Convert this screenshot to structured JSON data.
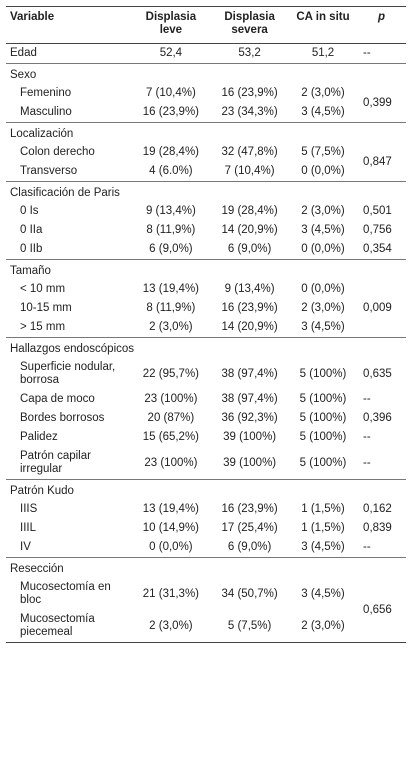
{
  "header": {
    "variable": "Variable",
    "leve": "Displasia leve",
    "severa": "Displasia severa",
    "ca": "CA in situ",
    "p": "p"
  },
  "groups": [
    {
      "label": "Edad",
      "values": [
        "52,4",
        "53,2",
        "51,2"
      ],
      "p": "--"
    },
    {
      "title": "Sexo",
      "p": "0,399",
      "rows": [
        {
          "label": "Femenino",
          "values": [
            "7 (10,4%)",
            "16 (23,9%)",
            "2 (3,0%)"
          ]
        },
        {
          "label": "Masculino",
          "values": [
            "16 (23,9%)",
            "23 (34,3%)",
            "3 (4,5%)"
          ]
        }
      ]
    },
    {
      "title": "Localización",
      "p": "0,847",
      "rows": [
        {
          "label": "Colon derecho",
          "values": [
            "19 (28,4%)",
            "32 (47,8%)",
            "5 (7,5%)"
          ]
        },
        {
          "label": "Transverso",
          "values": [
            "4 (6.0%)",
            "7 (10,4%)",
            "0 (0,0%)"
          ]
        }
      ]
    },
    {
      "title": "Clasificación de Paris",
      "rows": [
        {
          "label": "0 Is",
          "values": [
            "9 (13,4%)",
            "19 (28,4%)",
            "2 (3,0%)"
          ],
          "p": "0,501"
        },
        {
          "label": "0 IIa",
          "values": [
            "8 (11,9%)",
            "14 (20,9%)",
            "3 (4,5%)"
          ],
          "p": "0,756"
        },
        {
          "label": "0 IIb",
          "values": [
            "6 (9,0%)",
            "6 (9,0%)",
            "0 (0,0%)"
          ],
          "p": "0,354"
        }
      ]
    },
    {
      "title": "Tamaño",
      "p": "0,009",
      "rows": [
        {
          "label": "< 10 mm",
          "values": [
            "13 (19,4%)",
            "9 (13,4%)",
            "0 (0,0%)"
          ]
        },
        {
          "label": "10-15 mm",
          "values": [
            "8 (11,9%)",
            "16 (23,9%)",
            "2 (3,0%)"
          ]
        },
        {
          "label": "> 15 mm",
          "values": [
            "2 (3,0%)",
            "14 (20,9%)",
            "3 (4,5%)"
          ]
        }
      ]
    },
    {
      "title": "Hallazgos endoscópicos",
      "rows": [
        {
          "label": "Superficie nodular, borrosa",
          "values": [
            "22 (95,7%)",
            "38 (97,4%)",
            "5 (100%)"
          ],
          "p": "0,635"
        },
        {
          "label": "Capa de  moco",
          "values": [
            "23 (100%)",
            "38 (97,4%)",
            "5 (100%)"
          ],
          "p": "--"
        },
        {
          "label": "Bordes borrosos",
          "values": [
            "20 (87%)",
            "36 (92,3%)",
            "5 (100%)"
          ],
          "p": "0,396"
        },
        {
          "label": "Palidez",
          "values": [
            "15 (65,2%)",
            "39 (100%)",
            "5 (100%)"
          ],
          "p": "--"
        },
        {
          "label": "Patrón capilar irregular",
          "values": [
            "23 (100%)",
            "39 (100%)",
            "5 (100%)"
          ],
          "p": "--"
        }
      ]
    },
    {
      "title": "Patrón Kudo",
      "rows": [
        {
          "label": "IIIS",
          "values": [
            "13 (19,4%)",
            "16 (23,9%)",
            "1 (1,5%)"
          ],
          "p": "0,162"
        },
        {
          "label": "IIIL",
          "values": [
            "10 (14,9%)",
            "17 (25,4%)",
            "1 (1,5%)"
          ],
          "p": "0,839"
        },
        {
          "label": "IV",
          "values": [
            "0 (0,0%)",
            "6 (9,0%)",
            "3 (4,5%)"
          ],
          "p": "--"
        }
      ]
    },
    {
      "title": "Resección",
      "p": "0,656",
      "rows": [
        {
          "label": "Mucosectomía en bloc",
          "values": [
            "21 (31,3%)",
            "34 (50,7%)",
            "3 (4,5%)"
          ]
        },
        {
          "label": "Mucosectomía piecemeal",
          "values": [
            "2 (3,0%)",
            "5 (7,5%)",
            "2 (3,0%)"
          ]
        }
      ]
    }
  ]
}
